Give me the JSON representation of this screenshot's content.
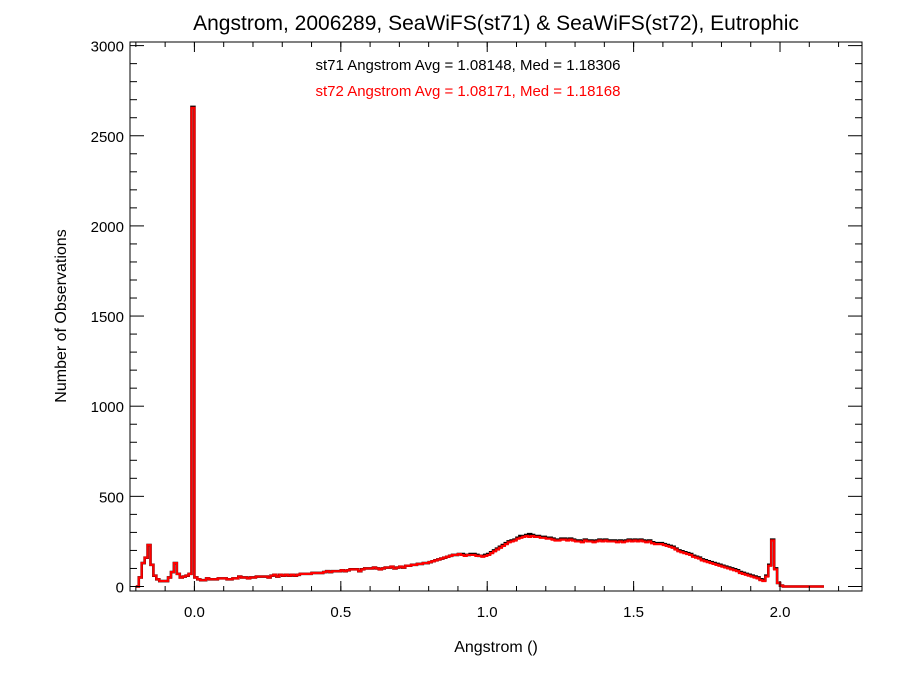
{
  "chart_data": {
    "type": "histogram",
    "title": "Angstrom, 2006289, SeaWiFS(st71) & SeaWiFS(st72), Eutrophic",
    "xlabel": "Angstrom ()",
    "ylabel": "Number of Observations",
    "xlim": [
      -0.22,
      2.28
    ],
    "ylim": [
      -25,
      3020
    ],
    "xticks": [
      0.0,
      0.5,
      1.0,
      1.5,
      2.0
    ],
    "xtick_labels": [
      "0.0",
      "0.5",
      "1.0",
      "1.5",
      "2.0"
    ],
    "yticks": [
      0,
      500,
      1000,
      1500,
      2000,
      2500,
      3000
    ],
    "ytick_labels": [
      "0",
      "500",
      "1000",
      "1500",
      "2000",
      "2500",
      "3000"
    ],
    "annotations": [
      {
        "text": "st71 Angstrom Avg = 1.08148, Med = 1.18306",
        "color": "#000000"
      },
      {
        "text": "st72 Angstrom Avg = 1.08171, Med = 1.18168",
        "color": "#ff0000"
      }
    ],
    "series": [
      {
        "name": "st71",
        "color": "#000000",
        "x_start": -0.2,
        "bin_width": 0.01,
        "values": [
          0,
          50,
          130,
          160,
          230,
          120,
          60,
          40,
          30,
          30,
          30,
          50,
          80,
          130,
          70,
          50,
          55,
          60,
          70,
          2660,
          50,
          40,
          35,
          35,
          45,
          40,
          40,
          40,
          45,
          45,
          45,
          40,
          40,
          45,
          45,
          55,
          50,
          50,
          45,
          50,
          50,
          55,
          55,
          55,
          55,
          50,
          60,
          65,
          55,
          65,
          60,
          65,
          60,
          65,
          60,
          65,
          70,
          70,
          70,
          70,
          75,
          75,
          75,
          75,
          80,
          85,
          80,
          85,
          85,
          85,
          90,
          85,
          90,
          95,
          95,
          95,
          85,
          95,
          100,
          100,
          100,
          105,
          100,
          95,
          100,
          105,
          105,
          110,
          100,
          105,
          110,
          105,
          115,
          115,
          120,
          120,
          125,
          125,
          130,
          130,
          135,
          140,
          145,
          150,
          155,
          160,
          165,
          170,
          175,
          175,
          180,
          180,
          175,
          175,
          180,
          180,
          175,
          170,
          170,
          175,
          180,
          190,
          200,
          210,
          220,
          230,
          240,
          250,
          255,
          260,
          270,
          280,
          280,
          285,
          290,
          285,
          280,
          280,
          275,
          275,
          270,
          270,
          265,
          260,
          260,
          265,
          265,
          260,
          265,
          260,
          255,
          255,
          250,
          260,
          255,
          255,
          250,
          255,
          260,
          255,
          260,
          255,
          255,
          255,
          250,
          255,
          250,
          255,
          260,
          255,
          260,
          255,
          260,
          255,
          250,
          255,
          245,
          240,
          240,
          240,
          235,
          230,
          225,
          220,
          210,
          200,
          195,
          190,
          185,
          180,
          170,
          165,
          160,
          150,
          145,
          140,
          135,
          130,
          125,
          120,
          115,
          110,
          105,
          100,
          95,
          90,
          80,
          75,
          70,
          65,
          60,
          55,
          50,
          40,
          35,
          60,
          120,
          260,
          100,
          20,
          5,
          0,
          0,
          0,
          0,
          0,
          0,
          0,
          0,
          0,
          0,
          0,
          0,
          0,
          0
        ]
      },
      {
        "name": "st72",
        "color": "#ff0000",
        "x_start": -0.2,
        "bin_width": 0.01,
        "values": [
          0,
          50,
          130,
          160,
          230,
          120,
          60,
          40,
          30,
          30,
          30,
          50,
          80,
          130,
          70,
          50,
          55,
          60,
          70,
          2655,
          50,
          40,
          35,
          35,
          45,
          40,
          40,
          40,
          45,
          45,
          45,
          40,
          40,
          45,
          45,
          55,
          50,
          50,
          45,
          50,
          50,
          55,
          55,
          55,
          55,
          50,
          60,
          65,
          55,
          65,
          60,
          65,
          60,
          65,
          60,
          65,
          70,
          70,
          70,
          70,
          75,
          75,
          75,
          75,
          80,
          85,
          80,
          85,
          85,
          85,
          90,
          85,
          90,
          95,
          95,
          95,
          85,
          95,
          100,
          100,
          100,
          105,
          100,
          95,
          100,
          105,
          105,
          110,
          100,
          105,
          110,
          105,
          115,
          115,
          120,
          120,
          125,
          125,
          130,
          130,
          135,
          140,
          145,
          150,
          155,
          160,
          165,
          170,
          175,
          175,
          180,
          175,
          170,
          175,
          175,
          175,
          170,
          170,
          165,
          170,
          175,
          185,
          195,
          205,
          215,
          225,
          235,
          245,
          250,
          255,
          265,
          270,
          275,
          280,
          275,
          280,
          275,
          275,
          270,
          270,
          265,
          265,
          260,
          255,
          255,
          260,
          260,
          255,
          260,
          255,
          250,
          250,
          245,
          255,
          250,
          250,
          245,
          250,
          255,
          250,
          255,
          250,
          250,
          250,
          245,
          250,
          245,
          250,
          255,
          250,
          255,
          250,
          255,
          250,
          245,
          250,
          240,
          235,
          235,
          235,
          230,
          225,
          220,
          215,
          205,
          195,
          190,
          185,
          180,
          175,
          165,
          160,
          155,
          145,
          140,
          135,
          130,
          125,
          120,
          115,
          110,
          105,
          100,
          95,
          90,
          85,
          75,
          70,
          65,
          60,
          55,
          50,
          45,
          35,
          30,
          55,
          115,
          255,
          95,
          20,
          5,
          0,
          0,
          0,
          0,
          0,
          0,
          0,
          0,
          0,
          0,
          0,
          0,
          0,
          0
        ]
      }
    ]
  }
}
